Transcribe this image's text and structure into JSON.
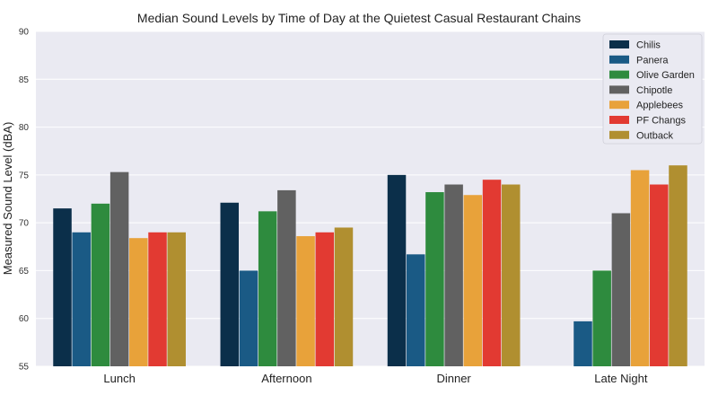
{
  "chart_data": {
    "type": "bar",
    "title": "Median Sound Levels by Time of Day at the Quietest Casual Restaurant Chains",
    "xlabel": "",
    "ylabel": "Measured Sound Level (dBA)",
    "ylim": [
      55,
      90
    ],
    "yticks": [
      55,
      60,
      65,
      70,
      75,
      80,
      85,
      90
    ],
    "grid": true,
    "legend_position": "top-right",
    "categories": [
      "Lunch",
      "Afternoon",
      "Dinner",
      "Late Night"
    ],
    "series": [
      {
        "name": "Chilis",
        "color": "#0b2f4a",
        "values": [
          71.5,
          72.1,
          75.0,
          null
        ]
      },
      {
        "name": "Panera",
        "color": "#1a5a85",
        "values": [
          69.0,
          65.0,
          66.7,
          59.7
        ]
      },
      {
        "name": "Olive Garden",
        "color": "#2e8b3e",
        "values": [
          72.0,
          71.2,
          73.2,
          65.0
        ]
      },
      {
        "name": "Chipotle",
        "color": "#616161",
        "values": [
          75.3,
          73.4,
          74.0,
          71.0
        ]
      },
      {
        "name": "Applebees",
        "color": "#e8a23a",
        "values": [
          68.4,
          68.6,
          72.9,
          75.5
        ]
      },
      {
        "name": "PF Changs",
        "color": "#e23a32",
        "values": [
          69.0,
          69.0,
          74.5,
          74.0
        ]
      },
      {
        "name": "Outback",
        "color": "#b08f30",
        "values": [
          69.0,
          69.5,
          74.0,
          76.0
        ]
      }
    ]
  }
}
